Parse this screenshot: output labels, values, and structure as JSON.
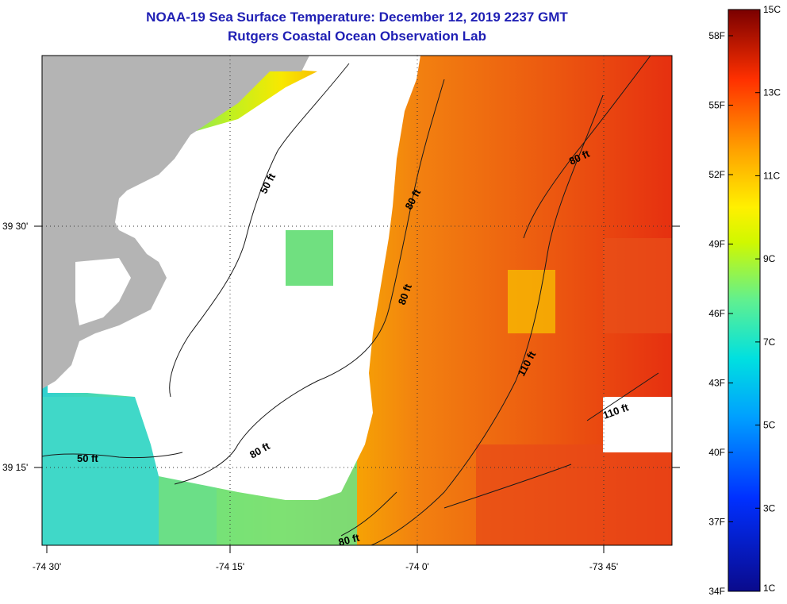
{
  "title": "NOAA-19 Sea Surface Temperature:  December 12, 2019 2237 GMT",
  "subtitle": "Rutgers Coastal Ocean Observation Lab",
  "colorbar": {
    "fahrenheit_labels": [
      "58F",
      "55F",
      "52F",
      "49F",
      "46F",
      "43F",
      "40F",
      "37F",
      "34F"
    ],
    "celsius_labels": [
      "15C",
      "13C",
      "11C",
      "9C",
      "7C",
      "5C",
      "3C",
      "1C"
    ],
    "range_c": [
      1,
      15
    ]
  },
  "axes": {
    "lon_labels": [
      "-74 30'",
      "-74 15'",
      "-74 0'",
      "-73 45'"
    ],
    "lat_labels": [
      "39 30'",
      "39 15'"
    ]
  },
  "contour_labels": [
    "50 ft",
    "50 ft",
    "80 ft",
    "80 ft",
    "80 ft",
    "80 ft",
    "80 ft",
    "110 ft",
    "110 ft"
  ],
  "colors": {
    "land": "#b4b4b4",
    "cloud": "#ffffff",
    "title": "#1f1fb4"
  }
}
